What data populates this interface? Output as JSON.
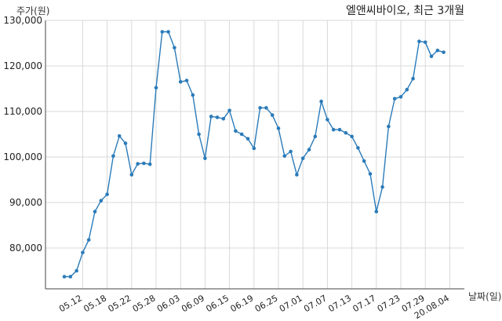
{
  "chart_data": {
    "type": "line",
    "title": "엘앤씨바이오, 최근 3개월",
    "ylabel": "주가(원)",
    "xlabel": "날짜(일)",
    "ylim": [
      70000,
      130000
    ],
    "yticks": [
      80000,
      90000,
      100000,
      110000,
      120000,
      130000
    ],
    "ytick_labels": [
      "80,000",
      "90,000",
      "100,000",
      "110,000",
      "120,000",
      "130,000"
    ],
    "xtick_indices": [
      3,
      7,
      11,
      15,
      19,
      23,
      27,
      31,
      35,
      39,
      43,
      47,
      51,
      55,
      59,
      63
    ],
    "xtick_labels": [
      "05.12",
      "05.18",
      "05.22",
      "05.28",
      "06.03",
      "06.09",
      "06.15",
      "06.19",
      "06.25",
      "07.01",
      "07.07",
      "07.13",
      "07.17",
      "07.23",
      "07.29",
      "20.08.04"
    ],
    "grid": true,
    "line_color": "#2b7bb9",
    "series": [
      {
        "values": [
          73700,
          73700,
          75000,
          79000,
          81800,
          88000,
          90400,
          91800,
          100200,
          104600,
          103000,
          96100,
          98500,
          98600,
          98400,
          115200,
          127500,
          127500,
          124000,
          116500,
          116800,
          113600,
          105000,
          99700,
          108900,
          108700,
          108400,
          110200,
          105700,
          105000,
          104000,
          101900,
          110800,
          110800,
          109200,
          106300,
          100200,
          101200,
          96100,
          99700,
          101600,
          104500,
          112200,
          108200,
          106000,
          106000,
          105300,
          104500,
          102000,
          99100,
          96300,
          88000,
          93400,
          106700,
          112800,
          113200,
          114800,
          117200,
          125400,
          125200,
          122100,
          123400,
          123000
        ]
      }
    ]
  }
}
